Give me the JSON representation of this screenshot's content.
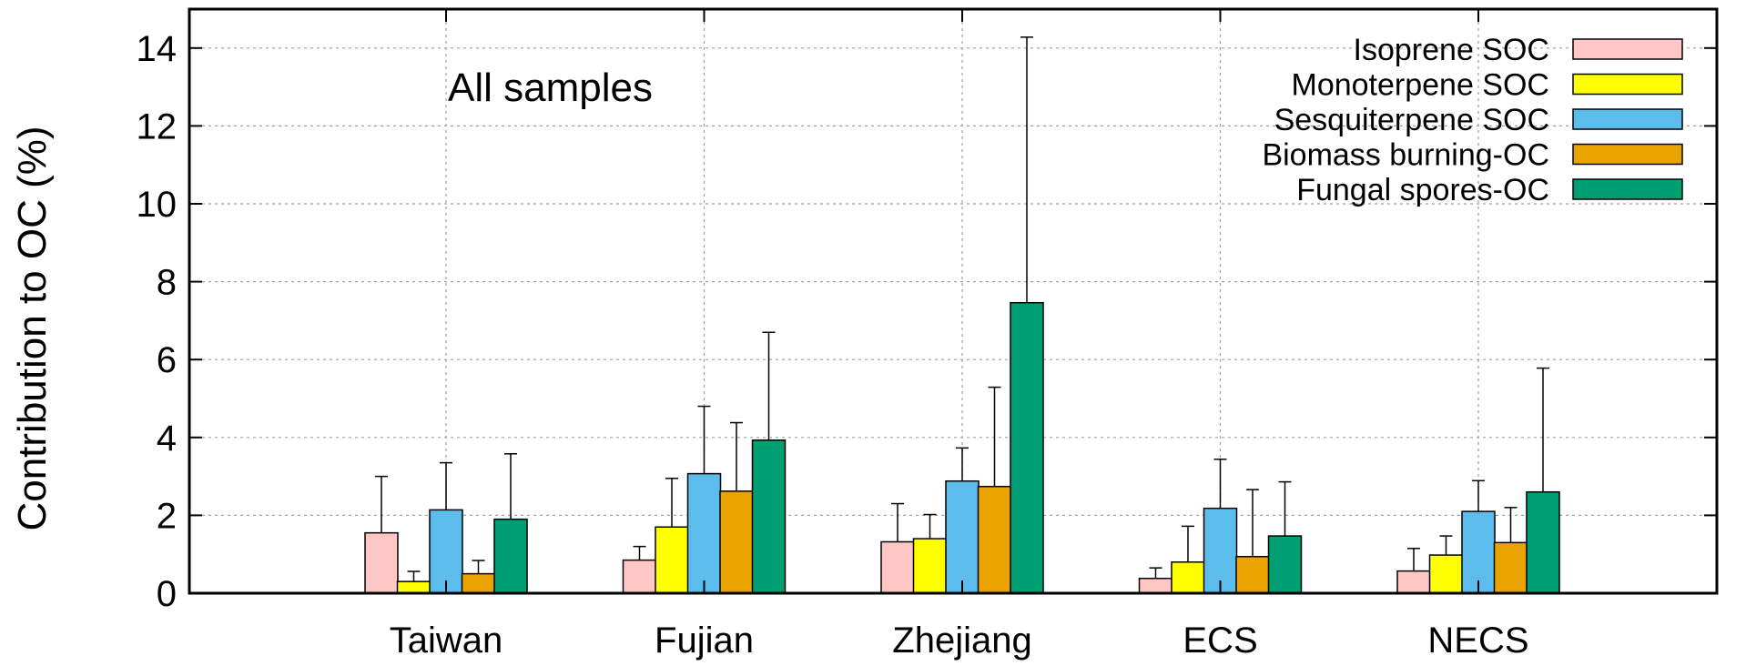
{
  "chart_data": {
    "type": "bar",
    "title": "",
    "annotation": "All samples",
    "ylabel": "Contribution to OC (%)",
    "xlabel": "",
    "ylim": [
      0,
      15
    ],
    "yticks": [
      0,
      2,
      4,
      6,
      8,
      10,
      12,
      14
    ],
    "grid": true,
    "legend_position": "top-right",
    "categories": [
      "Taiwan",
      "Fujian",
      "Zhejiang",
      "ECS",
      "NECS"
    ],
    "series": [
      {
        "name": "Isoprene SOC",
        "color": "#ffc6c6",
        "values": [
          1.55,
          0.85,
          1.32,
          0.38,
          0.57
        ],
        "errors": [
          1.45,
          0.35,
          0.98,
          0.27,
          0.58
        ]
      },
      {
        "name": "Monoterpene SOC",
        "color": "#ffff00",
        "values": [
          0.3,
          1.7,
          1.4,
          0.8,
          0.98
        ],
        "errors": [
          0.26,
          1.25,
          0.62,
          0.92,
          0.49
        ]
      },
      {
        "name": "Sesquiterpene SOC",
        "color": "#5cbdec",
        "values": [
          2.14,
          3.07,
          2.88,
          2.18,
          2.1
        ],
        "errors": [
          1.21,
          1.73,
          0.85,
          1.26,
          0.79
        ]
      },
      {
        "name": "Biomass burning-OC",
        "color": "#e9a300",
        "values": [
          0.5,
          2.62,
          2.74,
          0.94,
          1.3
        ],
        "errors": [
          0.34,
          1.76,
          2.55,
          1.72,
          0.9
        ]
      },
      {
        "name": "Fungal spores-OC",
        "color": "#009e73",
        "values": [
          1.9,
          3.93,
          7.46,
          1.47,
          2.6
        ],
        "errors": [
          1.68,
          2.77,
          6.82,
          1.39,
          3.18
        ]
      }
    ]
  }
}
